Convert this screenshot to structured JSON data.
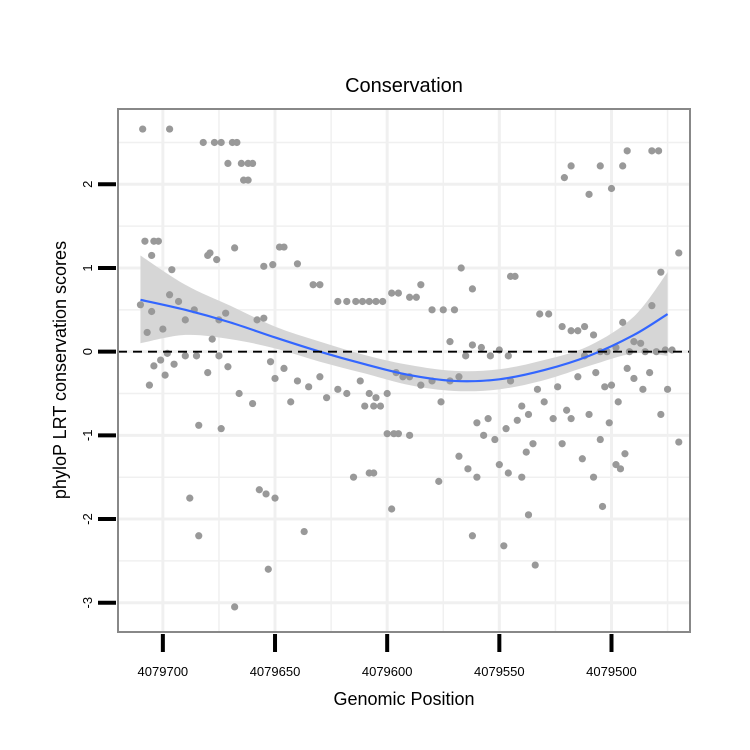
{
  "chart_data": {
    "type": "scatter",
    "title": "Conservation",
    "xlabel": "Genomic Position",
    "ylabel": "phyloP LRT conservation scores",
    "xlim": [
      4079720,
      4079465
    ],
    "ylim": [
      -3.35,
      2.9
    ],
    "x_reversed": true,
    "x_ticks": [
      4079700,
      4079650,
      4079600,
      4079550,
      4079500
    ],
    "x_tick_labels": [
      "4079700",
      "4079650",
      "4079600",
      "4079550",
      "4079500"
    ],
    "y_ticks": [
      -3,
      -2,
      -1,
      0,
      1,
      2
    ],
    "y_tick_labels": [
      "-3",
      "-2",
      "-1",
      "0",
      "1",
      "2"
    ],
    "grid": true,
    "reference_line": {
      "y": 0,
      "style": "dashed",
      "color": "#000000"
    },
    "colors": {
      "points": "#999999",
      "smooth": "#3366ff",
      "band": "#d4d4d4",
      "panel_border": "#888888",
      "grid": "#f0f0f0"
    },
    "series": [
      {
        "name": "phyloP scores",
        "kind": "points",
        "points": [
          [
            4079709,
            2.66
          ],
          [
            4079697,
            2.66
          ],
          [
            4079682,
            2.5
          ],
          [
            4079677,
            2.5
          ],
          [
            4079674,
            2.5
          ],
          [
            4079671,
            2.25
          ],
          [
            4079669,
            2.5
          ],
          [
            4079667,
            2.5
          ],
          [
            4079665,
            2.25
          ],
          [
            4079662,
            2.25
          ],
          [
            4079660,
            2.25
          ],
          [
            4079664,
            2.05
          ],
          [
            4079662,
            2.05
          ],
          [
            4079708,
            1.32
          ],
          [
            4079704,
            1.32
          ],
          [
            4079702,
            1.32
          ],
          [
            4079705,
            1.15
          ],
          [
            4079680,
            1.15
          ],
          [
            4079679,
            1.18
          ],
          [
            4079676,
            1.1
          ],
          [
            4079668,
            1.24
          ],
          [
            4079655,
            1.02
          ],
          [
            4079651,
            1.04
          ],
          [
            4079648,
            1.25
          ],
          [
            4079646,
            1.25
          ],
          [
            4079640,
            1.05
          ],
          [
            4079696,
            0.98
          ],
          [
            4079710,
            0.56
          ],
          [
            4079707,
            0.23
          ],
          [
            4079705,
            0.48
          ],
          [
            4079700,
            0.27
          ],
          [
            4079697,
            0.68
          ],
          [
            4079693,
            0.6
          ],
          [
            4079690,
            0.38
          ],
          [
            4079686,
            0.5
          ],
          [
            4079678,
            0.15
          ],
          [
            4079675,
            0.38
          ],
          [
            4079672,
            0.46
          ],
          [
            4079658,
            0.38
          ],
          [
            4079655,
            0.4
          ],
          [
            4079698,
            -0.02
          ],
          [
            4079706,
            -0.4
          ],
          [
            4079704,
            -0.17
          ],
          [
            4079701,
            -0.1
          ],
          [
            4079699,
            -0.28
          ],
          [
            4079695,
            -0.15
          ],
          [
            4079690,
            -0.05
          ],
          [
            4079685,
            -0.05
          ],
          [
            4079680,
            -0.25
          ],
          [
            4079675,
            -0.05
          ],
          [
            4079671,
            -0.18
          ],
          [
            4079666,
            -0.5
          ],
          [
            4079660,
            -0.62
          ],
          [
            4079652,
            -0.12
          ],
          [
            4079650,
            -0.32
          ],
          [
            4079646,
            -0.2
          ],
          [
            4079643,
            -0.6
          ],
          [
            4079640,
            -0.35
          ],
          [
            4079635,
            -0.42
          ],
          [
            4079630,
            -0.3
          ],
          [
            4079627,
            -0.55
          ],
          [
            4079622,
            -0.45
          ],
          [
            4079618,
            -0.5
          ],
          [
            4079684,
            -0.88
          ],
          [
            4079674,
            -0.92
          ],
          [
            4079688,
            -1.75
          ],
          [
            4079684,
            -2.2
          ],
          [
            4079657,
            -1.65
          ],
          [
            4079654,
            -1.7
          ],
          [
            4079650,
            -1.75
          ],
          [
            4079637,
            -2.15
          ],
          [
            4079653,
            -2.6
          ],
          [
            4079668,
            -3.05
          ],
          [
            4079633,
            0.8
          ],
          [
            4079630,
            0.8
          ],
          [
            4079622,
            0.6
          ],
          [
            4079618,
            0.6
          ],
          [
            4079614,
            0.6
          ],
          [
            4079611,
            0.6
          ],
          [
            4079608,
            0.6
          ],
          [
            4079605,
            0.6
          ],
          [
            4079602,
            0.6
          ],
          [
            4079598,
            0.7
          ],
          [
            4079595,
            0.7
          ],
          [
            4079590,
            0.65
          ],
          [
            4079587,
            0.65
          ],
          [
            4079585,
            0.8
          ],
          [
            4079580,
            0.5
          ],
          [
            4079575,
            0.5
          ],
          [
            4079570,
            0.5
          ],
          [
            4079567,
            1.0
          ],
          [
            4079562,
            0.75
          ],
          [
            4079612,
            -0.35
          ],
          [
            4079608,
            -0.5
          ],
          [
            4079605,
            -0.55
          ],
          [
            4079600,
            -0.5
          ],
          [
            4079596,
            -0.25
          ],
          [
            4079593,
            -0.3
          ],
          [
            4079590,
            -0.3
          ],
          [
            4079585,
            -0.4
          ],
          [
            4079580,
            -0.35
          ],
          [
            4079576,
            -0.6
          ],
          [
            4079572,
            -0.35
          ],
          [
            4079568,
            -0.3
          ],
          [
            4079565,
            -0.05
          ],
          [
            4079610,
            -0.65
          ],
          [
            4079606,
            -0.65
          ],
          [
            4079603,
            -0.65
          ],
          [
            4079600,
            -0.98
          ],
          [
            4079597,
            -0.98
          ],
          [
            4079595,
            -0.98
          ],
          [
            4079590,
            -1.0
          ],
          [
            4079608,
            -1.45
          ],
          [
            4079606,
            -1.45
          ],
          [
            4079615,
            -1.5
          ],
          [
            4079598,
            -1.88
          ],
          [
            4079577,
            -1.55
          ],
          [
            4079572,
            0.12
          ],
          [
            4079562,
            0.08
          ],
          [
            4079558,
            0.05
          ],
          [
            4079554,
            -0.05
          ],
          [
            4079550,
            0.02
          ],
          [
            4079546,
            -0.05
          ],
          [
            4079545,
            -0.35
          ],
          [
            4079540,
            -0.65
          ],
          [
            4079537,
            -0.75
          ],
          [
            4079533,
            -0.45
          ],
          [
            4079530,
            -0.6
          ],
          [
            4079526,
            -0.8
          ],
          [
            4079524,
            -0.42
          ],
          [
            4079520,
            -0.7
          ],
          [
            4079518,
            -0.8
          ],
          [
            4079560,
            -0.85
          ],
          [
            4079557,
            -1.0
          ],
          [
            4079555,
            -0.8
          ],
          [
            4079552,
            -1.05
          ],
          [
            4079547,
            -0.92
          ],
          [
            4079542,
            -0.82
          ],
          [
            4079538,
            -1.2
          ],
          [
            4079568,
            -1.25
          ],
          [
            4079564,
            -1.4
          ],
          [
            4079560,
            -1.5
          ],
          [
            4079550,
            -1.35
          ],
          [
            4079546,
            -1.45
          ],
          [
            4079540,
            -1.5
          ],
          [
            4079535,
            -1.1
          ],
          [
            4079522,
            -1.1
          ],
          [
            4079562,
            -2.2
          ],
          [
            4079548,
            -2.32
          ],
          [
            4079534,
            -2.55
          ],
          [
            4079537,
            -1.95
          ],
          [
            4079545,
            0.9
          ],
          [
            4079543,
            0.9
          ],
          [
            4079532,
            0.45
          ],
          [
            4079528,
            0.45
          ],
          [
            4079522,
            0.3
          ],
          [
            4079518,
            0.25
          ],
          [
            4079515,
            0.25
          ],
          [
            4079512,
            0.3
          ],
          [
            4079508,
            0.2
          ],
          [
            4079505,
            0.0
          ],
          [
            4079502,
            0.0
          ],
          [
            4079498,
            0.05
          ],
          [
            4079495,
            0.35
          ],
          [
            4079492,
            0.0
          ],
          [
            4079490,
            0.12
          ],
          [
            4079487,
            0.1
          ],
          [
            4079485,
            0.0
          ],
          [
            4079482,
            0.55
          ],
          [
            4079480,
            0.0
          ],
          [
            4079478,
            0.95
          ],
          [
            4079476,
            0.02
          ],
          [
            4079473,
            0.02
          ],
          [
            4079470,
            1.18
          ],
          [
            4079515,
            -0.3
          ],
          [
            4079512,
            -0.05
          ],
          [
            4079507,
            -0.25
          ],
          [
            4079503,
            -0.42
          ],
          [
            4079500,
            -0.4
          ],
          [
            4079497,
            -0.6
          ],
          [
            4079493,
            -0.2
          ],
          [
            4079490,
            -0.32
          ],
          [
            4079486,
            -0.45
          ],
          [
            4079483,
            -0.25
          ],
          [
            4079478,
            -0.75
          ],
          [
            4079475,
            -0.45
          ],
          [
            4079470,
            -1.08
          ],
          [
            4079510,
            -0.75
          ],
          [
            4079505,
            -1.05
          ],
          [
            4079501,
            -0.85
          ],
          [
            4079498,
            -1.35
          ],
          [
            4079496,
            -1.4
          ],
          [
            4079494,
            -1.22
          ],
          [
            4079508,
            -1.5
          ],
          [
            4079504,
            -1.85
          ],
          [
            4079513,
            -1.28
          ],
          [
            4079521,
            2.08
          ],
          [
            4079518,
            2.22
          ],
          [
            4079510,
            1.88
          ],
          [
            4079505,
            2.22
          ],
          [
            4079500,
            1.95
          ],
          [
            4079495,
            2.22
          ],
          [
            4079493,
            2.4
          ],
          [
            4079482,
            2.4
          ],
          [
            4079479,
            2.4
          ]
        ]
      },
      {
        "name": "loess fit",
        "kind": "line",
        "x": [
          4079710,
          4079690,
          4079670,
          4079650,
          4079630,
          4079610,
          4079590,
          4079570,
          4079550,
          4079530,
          4079510,
          4079490,
          4079475
        ],
        "y": [
          0.62,
          0.5,
          0.35,
          0.17,
          0.0,
          -0.15,
          -0.28,
          -0.35,
          -0.33,
          -0.22,
          -0.05,
          0.2,
          0.45
        ]
      },
      {
        "name": "confidence band",
        "kind": "band",
        "x": [
          4079710,
          4079690,
          4079670,
          4079650,
          4079630,
          4079610,
          4079590,
          4079570,
          4079550,
          4079530,
          4079510,
          4079490,
          4079475
        ],
        "upper": [
          1.15,
          0.8,
          0.55,
          0.3,
          0.12,
          -0.04,
          -0.16,
          -0.23,
          -0.21,
          -0.1,
          0.07,
          0.42,
          0.95
        ],
        "lower": [
          0.1,
          0.2,
          0.15,
          0.04,
          -0.12,
          -0.26,
          -0.4,
          -0.47,
          -0.45,
          -0.34,
          -0.17,
          -0.02,
          -0.05
        ]
      }
    ]
  }
}
